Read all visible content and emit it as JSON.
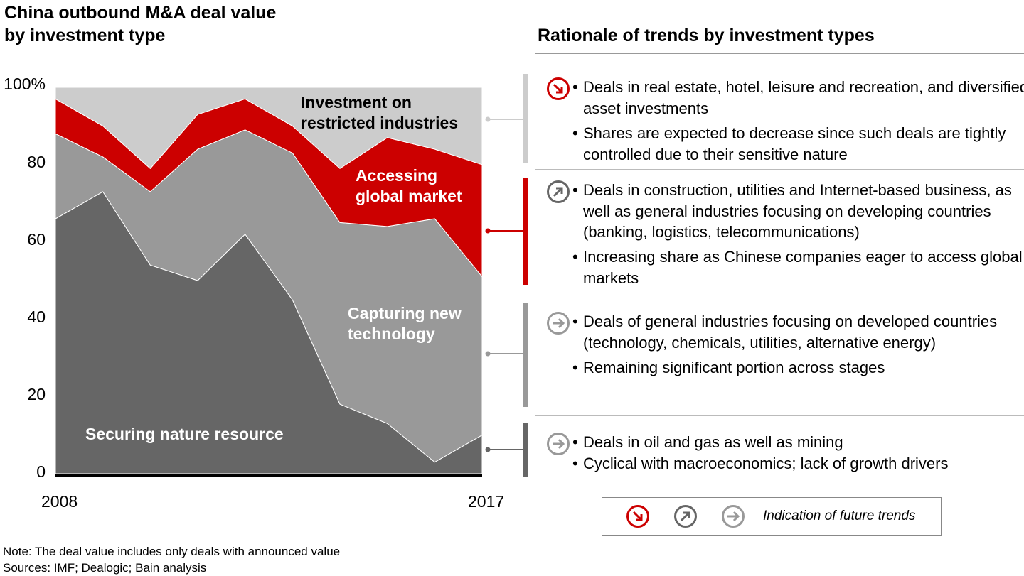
{
  "chart_data": {
    "type": "area",
    "stacked": true,
    "percent": true,
    "title": "China outbound M&A deal value by investment type",
    "title_lines": [
      "China outbound M&A deal value",
      "by investment type"
    ],
    "x": [
      2008,
      2009,
      2010,
      2011,
      2012,
      2013,
      2014,
      2015,
      2016,
      2017
    ],
    "x_tick_labels": [
      "2008",
      "2017"
    ],
    "y_tick_labels": [
      "0",
      "20",
      "40",
      "60",
      "80",
      "100%"
    ],
    "ylim": [
      0,
      100
    ],
    "grid": false,
    "series": [
      {
        "name": "Securing nature resource",
        "color": "#666666",
        "values": [
          66,
          73,
          54,
          50,
          62,
          45,
          18,
          13,
          3,
          10
        ]
      },
      {
        "name": "Capturing new technology",
        "color": "#999999",
        "values": [
          22,
          9,
          19,
          34,
          27,
          38,
          47,
          51,
          63,
          41
        ]
      },
      {
        "name": "Accessing global market",
        "color": "#cc0000",
        "values": [
          9,
          8,
          6,
          9,
          8,
          7,
          14,
          23,
          18,
          29
        ]
      },
      {
        "name": "Investment on restricted industries",
        "color": "#cccccc",
        "values": [
          3,
          10,
          21,
          7,
          3,
          10,
          21,
          13,
          16,
          20
        ]
      }
    ],
    "series_label_lines": {
      "restricted": [
        "Investment on",
        "restricted industries"
      ],
      "market": [
        "Accessing",
        "global market"
      ],
      "tech": [
        "Capturing new",
        "technology"
      ],
      "resource": [
        "Securing nature resource"
      ]
    }
  },
  "rationale": {
    "title": "Rationale of trends by investment types",
    "sections": [
      {
        "trend": "decrease",
        "icon": "arrow-down-right-circle-icon",
        "color": "#cc0000",
        "bar_color": "#cccccc",
        "bullets": [
          "Deals in real estate, hotel, leisure and recreation, and diversified asset investments",
          "Shares are expected to decrease since such deals are tightly controlled due to their sensitive nature"
        ]
      },
      {
        "trend": "increase",
        "icon": "arrow-up-right-circle-icon",
        "color": "#666666",
        "bar_color": "#cc0000",
        "bullets": [
          "Deals in construction, utilities and Internet-based business, as well as general industries focusing on developing countries (banking, logistics, telecommunications)",
          "Increasing share as Chinese companies eager to access global markets"
        ]
      },
      {
        "trend": "stable",
        "icon": "arrow-right-circle-icon",
        "color": "#999999",
        "bar_color": "#999999",
        "bullets": [
          "Deals of general industries focusing on developed countries (technology, chemicals, utilities, alternative energy)",
          "Remaining significant portion across stages"
        ]
      },
      {
        "trend": "stable",
        "icon": "arrow-right-circle-icon",
        "color": "#999999",
        "bar_color": "#666666",
        "bullets": [
          "Deals in oil and gas as well as mining",
          "Cyclical with macroeconomics; lack of growth drivers"
        ]
      }
    ]
  },
  "legend": {
    "label": "Indication of future trends"
  },
  "note": "Note: The deal value includes only deals with announced value",
  "sources": "Sources: IMF; Dealogic; Bain analysis"
}
